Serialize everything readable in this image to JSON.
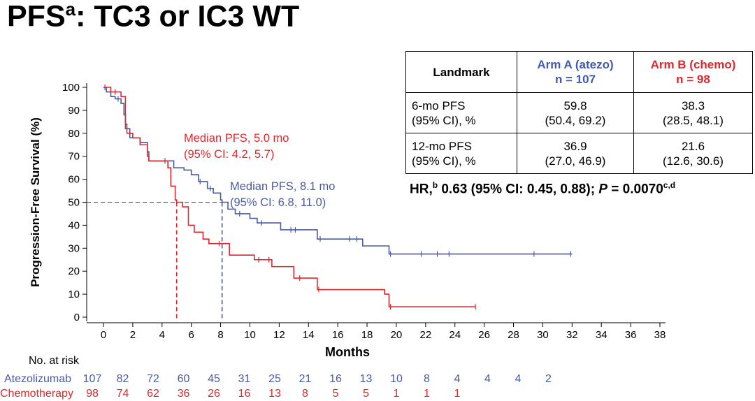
{
  "title": {
    "main": "PFS",
    "sup": "a",
    "rest": ": TC3 or IC3 WT"
  },
  "landmark_table": {
    "header": [
      "Landmark",
      "Arm A (atezo)",
      "n = 107",
      "Arm B (chemo)",
      "n = 98"
    ],
    "rows": [
      {
        "label1": "6-mo PFS",
        "label2": "(95% CI), %",
        "a": "59.8",
        "a_ci": "(50.4, 69.2)",
        "b": "38.3",
        "b_ci": "(28.5, 48.1)"
      },
      {
        "label1": "12-mo PFS",
        "label2": "(95% CI), %",
        "a": "36.9",
        "a_ci": "(27.0, 46.9)",
        "b": "21.6",
        "b_ci": "(12.6, 30.6)"
      }
    ]
  },
  "hr_text": {
    "pre": "HR,",
    "sup1": "b",
    "mid": " 0.63 (95% CI: 0.45, 0.88); ",
    "p": "P",
    "post": " = 0.0070",
    "sup2": "c,d"
  },
  "colors": {
    "atezo": "#4a5aa6",
    "chemo": "#e3262b"
  },
  "chart_data": {
    "type": "line",
    "xlabel": "Months",
    "ylabel": "Progression-Free Survival (%)",
    "xlim": [
      0,
      38
    ],
    "ylim": [
      0,
      100
    ],
    "xticks": [
      0,
      2,
      4,
      6,
      8,
      10,
      12,
      14,
      16,
      18,
      20,
      22,
      24,
      26,
      28,
      30,
      32,
      34,
      36,
      38
    ],
    "yticks": [
      0,
      10,
      20,
      30,
      40,
      50,
      60,
      70,
      80,
      90,
      100
    ],
    "series": [
      {
        "name": "Atezolizumab",
        "step": true,
        "x": [
          0,
          0.2,
          0.5,
          0.8,
          1.2,
          1.4,
          1.5,
          1.8,
          2.5,
          3.0,
          3.1,
          4.5,
          4.8,
          5.5,
          6.0,
          6.5,
          7.1,
          7.5,
          8.0,
          8.1,
          8.5,
          9.0,
          10.0,
          10.5,
          12.1,
          14.6,
          17.7,
          19.5,
          32
        ],
        "y": [
          100,
          98,
          96,
          95,
          93,
          88,
          82,
          78,
          76,
          72,
          68,
          68,
          65,
          64,
          62,
          59,
          56,
          54,
          51,
          50,
          47,
          45,
          43,
          41,
          38,
          34,
          31,
          27.5,
          27.5
        ],
        "censored_x": [
          0.1,
          1.0,
          4.2,
          6.6,
          7.3,
          9.3,
          10.8,
          12.8,
          13.1,
          14.8,
          16.8,
          17.3,
          19.6,
          21.7,
          22.8,
          23.6,
          29.4,
          31.9
        ]
      },
      {
        "name": "Chemotherapy",
        "step": true,
        "x": [
          0,
          0.5,
          1.2,
          1.5,
          1.6,
          2.0,
          2.5,
          3.0,
          3.1,
          4.4,
          4.6,
          4.9,
          5.0,
          5.4,
          5.8,
          6.2,
          6.8,
          7.2,
          8.6,
          10.3,
          11.5,
          13.0,
          14.6,
          19.2,
          19.5,
          25.4
        ],
        "y": [
          100,
          98,
          96,
          84,
          80,
          78,
          75,
          70,
          68,
          65,
          57,
          51,
          50,
          48,
          40,
          37,
          34,
          32,
          27,
          25,
          22,
          17,
          12,
          10,
          4.5,
          4.5
        ],
        "censored_x": [
          0.8,
          7.9,
          10.6,
          11.3,
          13.4,
          14.7,
          19.6,
          25.4
        ]
      }
    ],
    "median_line": 50,
    "annotations": [
      {
        "text1": "Median PFS, 5.0 mo",
        "text2": "(95% CI: 4.2, 5.7)",
        "series": "Chemotherapy",
        "median": 5.0
      },
      {
        "text1": "Median PFS, 8.1 mo",
        "text2": "(95% CI: 6.8, 11.0)",
        "series": "Atezolizumab",
        "median": 8.1
      }
    ],
    "risk_table": {
      "label": "No. at risk",
      "rows": [
        {
          "name": "Atezolizumab",
          "values": [
            "107",
            "82",
            "72",
            "60",
            "45",
            "31",
            "25",
            "21",
            "16",
            "13",
            "10",
            "8",
            "4",
            "4",
            "4",
            "2"
          ]
        },
        {
          "name": "Chemotherapy",
          "values": [
            "98",
            "74",
            "62",
            "36",
            "26",
            "16",
            "13",
            "8",
            "5",
            "5",
            "1",
            "1",
            "1"
          ]
        }
      ]
    }
  }
}
